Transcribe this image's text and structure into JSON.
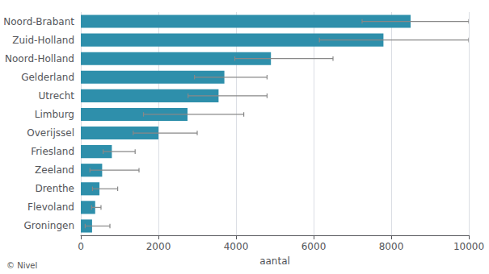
{
  "chart_data": {
    "type": "bar",
    "orientation": "horizontal",
    "categories": [
      "Noord-Brabant",
      "Zuid-Holland",
      "Noord-Holland",
      "Gelderland",
      "Utrecht",
      "Limburg",
      "Overijssel",
      "Friesland",
      "Zeeland",
      "Drenthe",
      "Flevoland",
      "Groningen"
    ],
    "values": [
      8500,
      7800,
      4900,
      3700,
      3550,
      2750,
      2000,
      800,
      550,
      480,
      370,
      290
    ],
    "error_low": [
      7250,
      6150,
      3970,
      2930,
      2765,
      1615,
      1350,
      575,
      235,
      301,
      278,
      112
    ],
    "error_high": [
      10000,
      10000,
      6500,
      4800,
      4800,
      4200,
      3000,
      1400,
      1500,
      950,
      520,
      750
    ],
    "color": "#2e8fab",
    "xlabel": "aantal",
    "xlim": [
      0,
      10000
    ],
    "xticks": [
      0,
      2000,
      4000,
      6000,
      8000,
      10000
    ],
    "grid": true,
    "annotations": [
      "© Nivel"
    ]
  }
}
